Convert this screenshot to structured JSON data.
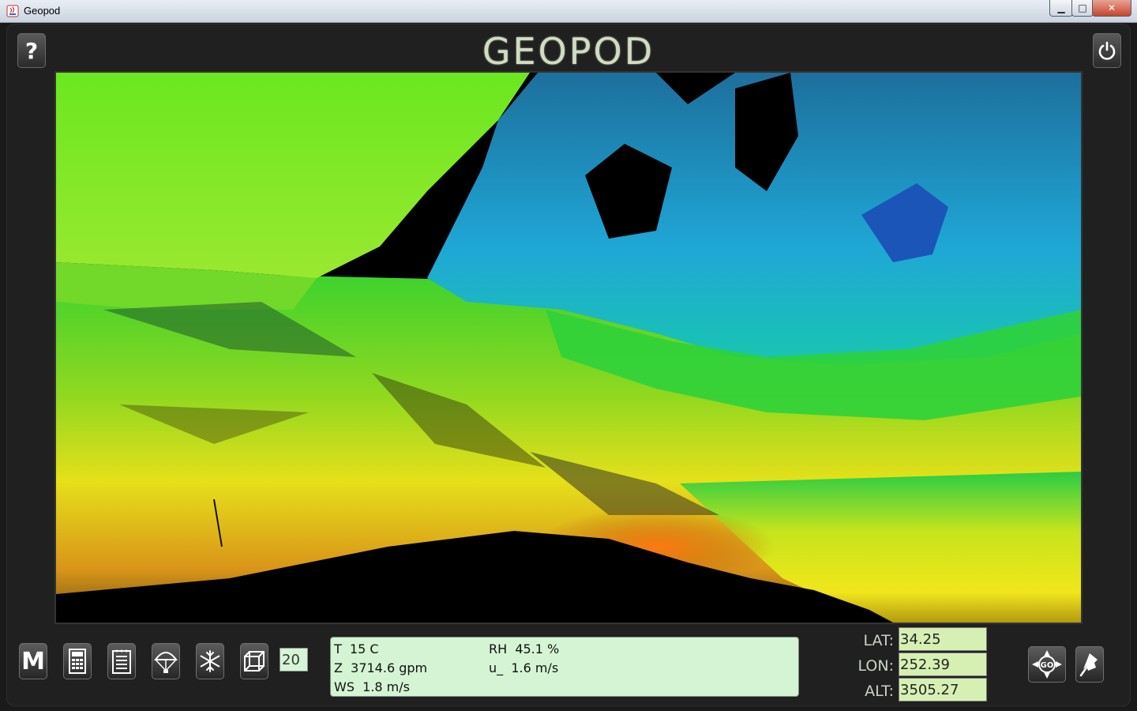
{
  "window": {
    "title": "Geopod",
    "minimize": "▁",
    "maximize": "□",
    "close": "✕"
  },
  "header": {
    "logo": "GEOPOD"
  },
  "buttons": {
    "help": {
      "label": "?",
      "icon": "question-icon"
    },
    "power": {
      "icon": "power-icon"
    }
  },
  "toolbar": {
    "tools": [
      {
        "name": "menu-m-button",
        "icon": "m-icon",
        "label": "M"
      },
      {
        "name": "calculator-button",
        "icon": "calculator-icon"
      },
      {
        "name": "notepad-button",
        "icon": "notepad-icon"
      },
      {
        "name": "parachute-button",
        "icon": "parachute-icon"
      },
      {
        "name": "snowflake-button",
        "icon": "snowflake-icon"
      },
      {
        "name": "cube-button",
        "icon": "cube-icon"
      }
    ],
    "step_value": "20"
  },
  "readout": {
    "t": "T  15 C",
    "rh": "RH  45.1 %",
    "z": "Z  3714.6 gpm",
    "u": "u_  1.6 m/s",
    "ws": "WS  1.8 m/s"
  },
  "coords": {
    "lat_label": "LAT:",
    "lat_value": "34.25",
    "lon_label": "LON:",
    "lon_value": "252.39",
    "alt_label": "ALT:",
    "alt_value": "3505.27"
  },
  "nav": {
    "go_label": "GO",
    "go_icon": "go-compass-icon",
    "pin_icon": "pushpin-icon"
  },
  "colors": {
    "readout_bg": "#d4f4d4",
    "coord_bg": "#d6f0b4",
    "logo": "#d2dcc4"
  }
}
